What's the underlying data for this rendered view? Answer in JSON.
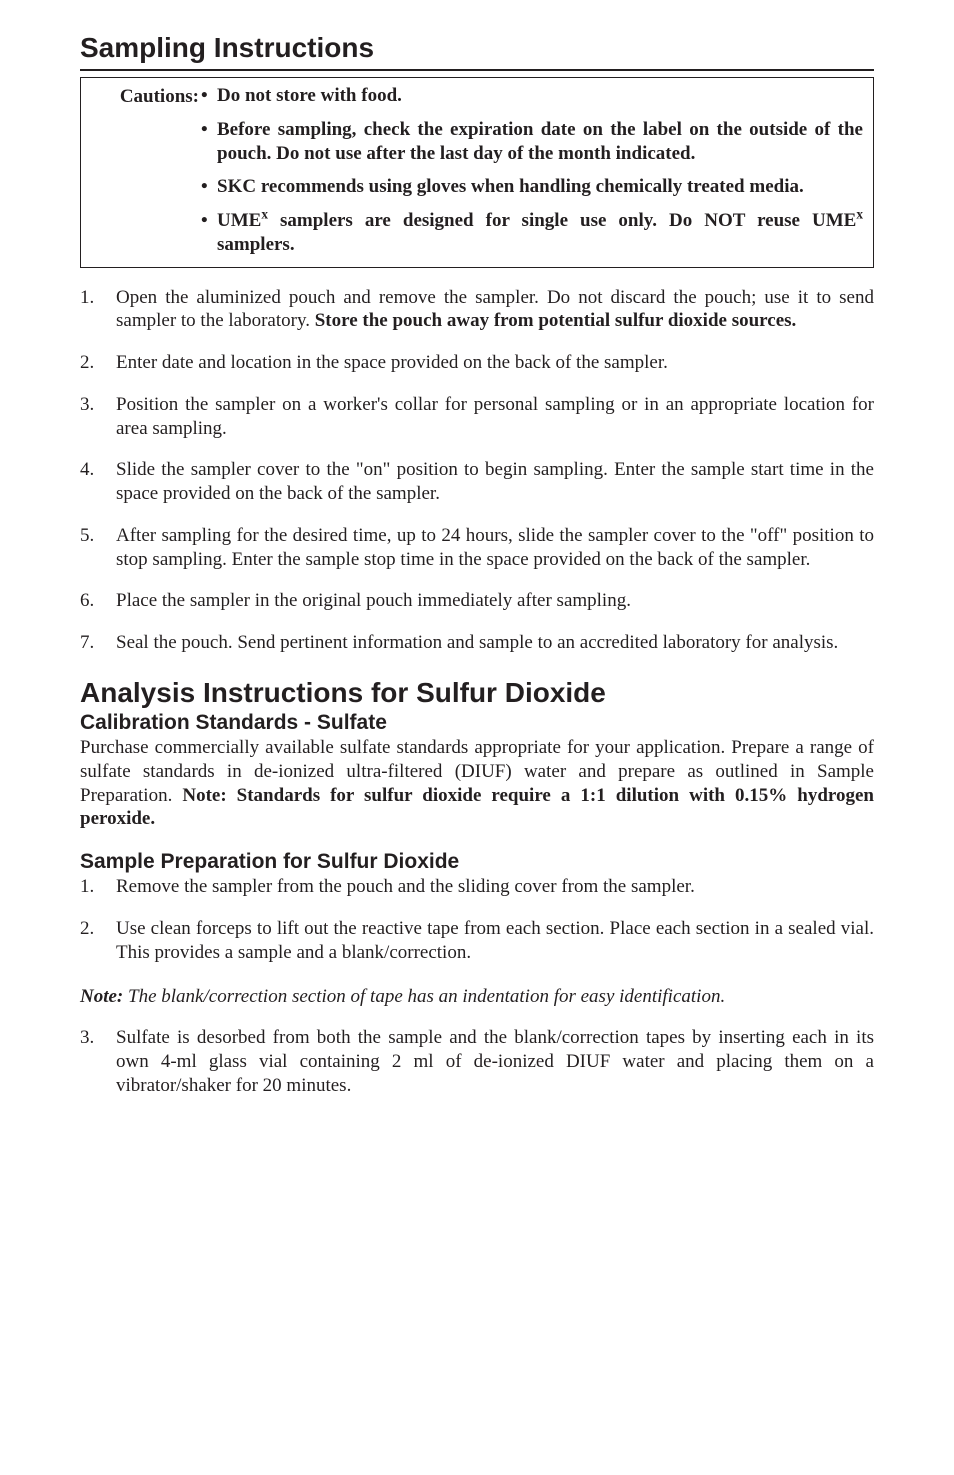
{
  "sampling": {
    "heading": "Sampling Instructions",
    "cautions_label": "Cautions:",
    "cautions": [
      "Do not store with food.",
      "Before sampling, check the expiration date on the label on the outside of the pouch. Do not use after the last day of the month indicated.",
      "SKC recommends using gloves when handling chemically treated media.",
      "UMEx samplers are designed for single use only. Do NOT reuse UMEx samplers."
    ],
    "steps": {
      "n1": "1.",
      "t1a": "Open the aluminized pouch and remove the sampler. Do not discard the pouch; use it to send sampler to the laboratory. ",
      "t1b": "Store the pouch away from potential sulfur dioxide sources.",
      "n2": "2.",
      "t2": "Enter date and location in the space provided on the back of the sampler.",
      "n3": "3.",
      "t3": "Position the sampler on a worker's collar for personal sampling or in an appropriate location for area sampling.",
      "n4": "4.",
      "t4": "Slide the sampler cover to the \"on\" position to begin sampling. Enter the sample start time in the space provided on the back of the sampler.",
      "n5": "5.",
      "t5": "After sampling for the desired time, up to 24 hours, slide the sampler cover to the \"off\" position to stop sampling. Enter the sample stop time in the space provided on the back of the sampler.",
      "n6": "6.",
      "t6": "Place the sampler in the original pouch immediately after sampling.",
      "n7": "7.",
      "t7": "Seal the pouch. Send pertinent information and sample to an accredited laboratory for analysis."
    }
  },
  "analysis": {
    "heading": "Analysis Instructions for Sulfur Dioxide",
    "cal_heading": "Calibration Standards - Sulfate",
    "cal_body_a": "Purchase commercially available sulfate standards appropriate for your application. Prepare a range of sulfate standards in de-ionized ultra-filtered (DIUF) water and prepare as outlined in Sample Preparation. ",
    "cal_body_b": "Note: Standards for sulfur dioxide require a 1:1 dilution with 0.15% hydrogen peroxide.",
    "prep_heading": "Sample Preparation for Sulfur Dioxide",
    "prep": {
      "n1": "1.",
      "t1": "Remove the sampler from the pouch and the sliding cover from the sampler.",
      "n2": "2.",
      "t2": "Use clean forceps to lift out the reactive tape from each section. Place each section in a sealed vial. This provides a sample and a blank/correction.",
      "n3": "3.",
      "t3": "Sulfate is desorbed from both the sample and the blank/correction tapes by inserting each in its own 4-ml glass vial containing 2 ml of de-ionized DIUF water and placing them on a vibrator/shaker for 20 minutes."
    },
    "note_label": "Note:",
    "note_body": " The blank/correction section of tape has an indentation for easy identification."
  }
}
